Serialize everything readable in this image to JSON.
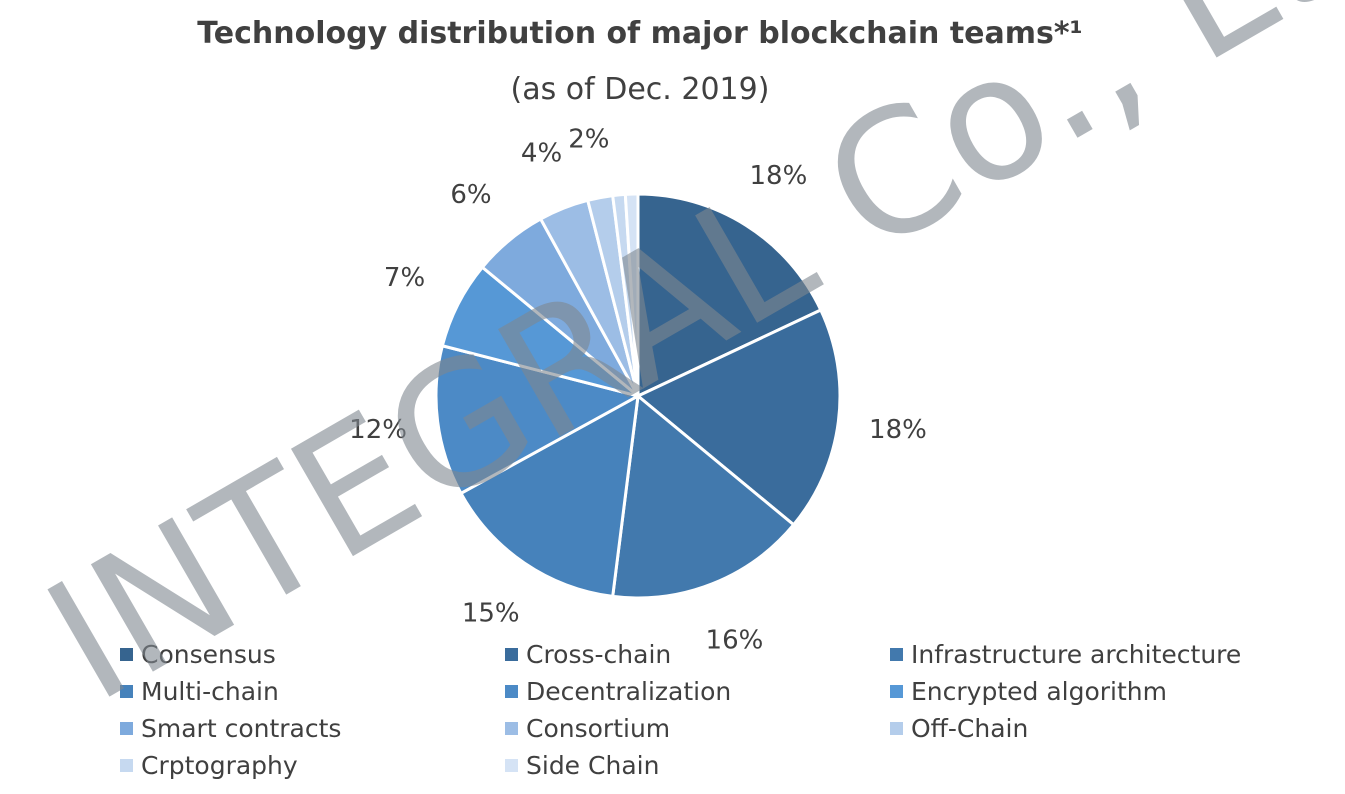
{
  "title": "Technology distribution of major blockchain teams*¹",
  "subtitle": "(as of Dec. 2019)",
  "watermark": "INTEGRAL Co., Ltd",
  "chart_data": {
    "type": "pie",
    "unit": "%",
    "slices": [
      {
        "name": "Consensus",
        "value": 18,
        "label": "18%",
        "color": "#36648f"
      },
      {
        "name": "Cross-chain",
        "value": 18,
        "label": "18%",
        "color": "#3a6c9c"
      },
      {
        "name": "Infrastructure architecture",
        "value": 16,
        "label": "16%",
        "color": "#4279ad"
      },
      {
        "name": "Multi-chain",
        "value": 15,
        "label": "15%",
        "color": "#4682bb"
      },
      {
        "name": "Decentralization",
        "value": 12,
        "label": "12%",
        "color": "#4c8ac6"
      },
      {
        "name": "Encrypted algorithm",
        "value": 7,
        "label": "7%",
        "color": "#5698d6"
      },
      {
        "name": "Smart contracts",
        "value": 6,
        "label": "6%",
        "color": "#7eaadd"
      },
      {
        "name": "Consortium",
        "value": 4,
        "label": "4%",
        "color": "#9cbde5"
      },
      {
        "name": "Off-Chain",
        "value": 2,
        "label": "2%",
        "color": "#b4cdeb"
      },
      {
        "name": "Crptography",
        "value": 1,
        "label": "",
        "color": "#c6d9f0"
      },
      {
        "name": "Side Chain",
        "value": 1,
        "label": "",
        "color": "#d5e3f5"
      }
    ],
    "legend_position": "bottom"
  }
}
